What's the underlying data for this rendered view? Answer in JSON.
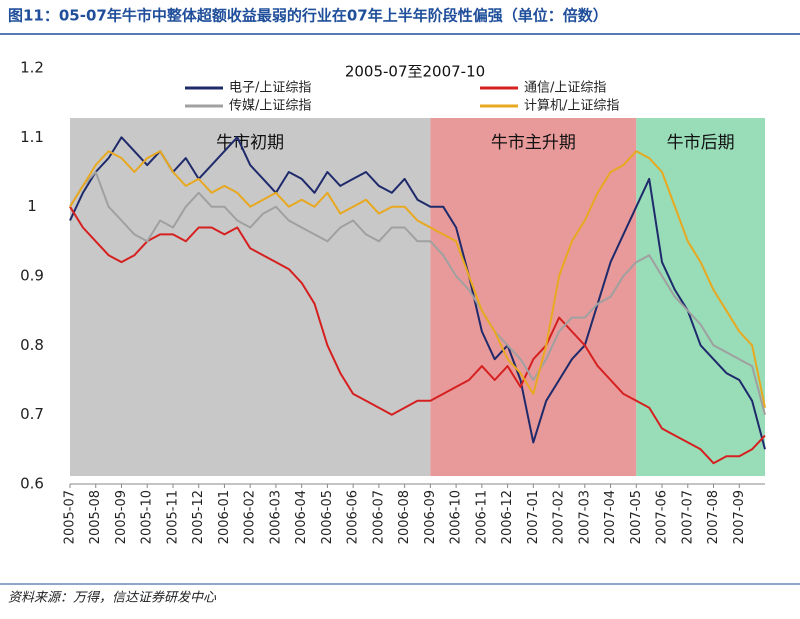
{
  "chart_data": {
    "type": "line",
    "figure_title": "图11：05-07年牛市中整体超额收益最弱的行业在07年上半年阶段性偏强（单位：倍数）",
    "title": "2005-07至2007-10",
    "source": "资料来源：万得，信达证券研发中心",
    "categories": [
      "2005-07",
      null,
      "2005-08",
      null,
      "2005-09",
      null,
      "2005-10",
      null,
      "2005-11",
      null,
      "2005-12",
      null,
      "2006-01",
      null,
      "2006-02",
      null,
      "2006-03",
      null,
      "2006-04",
      null,
      "2006-05",
      null,
      "2006-06",
      null,
      "2006-07",
      null,
      "2006-08",
      null,
      "2006-09",
      null,
      "2006-10",
      null,
      "2006-11",
      null,
      "2006-12",
      null,
      "2007-01",
      null,
      "2007-02",
      null,
      "2007-03",
      null,
      "2007-04",
      null,
      "2007-05",
      null,
      "2007-06",
      null,
      "2007-07",
      null,
      "2007-08",
      null,
      "2007-09",
      null,
      null
    ],
    "series": [
      {
        "name": "电子/上证综指",
        "color": "#1f2a6b",
        "values": [
          0.98,
          1.02,
          1.05,
          1.07,
          1.1,
          1.08,
          1.06,
          1.08,
          1.05,
          1.07,
          1.04,
          1.06,
          1.08,
          1.1,
          1.06,
          1.04,
          1.02,
          1.05,
          1.04,
          1.02,
          1.05,
          1.03,
          1.04,
          1.05,
          1.03,
          1.02,
          1.04,
          1.01,
          1.0,
          1.0,
          0.97,
          0.9,
          0.82,
          0.78,
          0.8,
          0.75,
          0.66,
          0.72,
          0.75,
          0.78,
          0.8,
          0.86,
          0.92,
          0.96,
          1.0,
          1.04,
          0.92,
          0.88,
          0.85,
          0.8,
          0.78,
          0.76,
          0.75,
          0.72,
          0.65
        ]
      },
      {
        "name": "通信/上证综指",
        "color": "#d62020",
        "values": [
          1.0,
          0.97,
          0.95,
          0.93,
          0.92,
          0.93,
          0.95,
          0.96,
          0.96,
          0.95,
          0.97,
          0.97,
          0.96,
          0.97,
          0.94,
          0.93,
          0.92,
          0.91,
          0.89,
          0.86,
          0.8,
          0.76,
          0.73,
          0.72,
          0.71,
          0.7,
          0.71,
          0.72,
          0.72,
          0.73,
          0.74,
          0.75,
          0.77,
          0.75,
          0.77,
          0.74,
          0.78,
          0.8,
          0.84,
          0.82,
          0.8,
          0.77,
          0.75,
          0.73,
          0.72,
          0.71,
          0.68,
          0.67,
          0.66,
          0.65,
          0.63,
          0.64,
          0.64,
          0.65,
          0.67
        ]
      },
      {
        "name": "传媒/上证综指",
        "color": "#a0a0a0",
        "values": [
          1.0,
          1.03,
          1.05,
          1.0,
          0.98,
          0.96,
          0.95,
          0.98,
          0.97,
          1.0,
          1.02,
          1.0,
          1.0,
          0.98,
          0.97,
          0.99,
          1.0,
          0.98,
          0.97,
          0.96,
          0.95,
          0.97,
          0.98,
          0.96,
          0.95,
          0.97,
          0.97,
          0.95,
          0.95,
          0.93,
          0.9,
          0.88,
          0.85,
          0.82,
          0.8,
          0.78,
          0.75,
          0.78,
          0.82,
          0.84,
          0.84,
          0.86,
          0.87,
          0.9,
          0.92,
          0.93,
          0.9,
          0.87,
          0.85,
          0.83,
          0.8,
          0.79,
          0.78,
          0.77,
          0.7
        ]
      },
      {
        "name": "计算机/上证综指",
        "color": "#e8a820",
        "values": [
          1.0,
          1.03,
          1.06,
          1.08,
          1.07,
          1.05,
          1.07,
          1.08,
          1.05,
          1.03,
          1.04,
          1.02,
          1.03,
          1.02,
          1.0,
          1.01,
          1.02,
          1.0,
          1.01,
          1.0,
          1.02,
          0.99,
          1.0,
          1.01,
          0.99,
          1.0,
          1.0,
          0.98,
          0.97,
          0.96,
          0.95,
          0.9,
          0.85,
          0.82,
          0.78,
          0.76,
          0.73,
          0.8,
          0.9,
          0.95,
          0.98,
          1.02,
          1.05,
          1.06,
          1.08,
          1.07,
          1.05,
          1.0,
          0.95,
          0.92,
          0.88,
          0.85,
          0.82,
          0.8,
          0.71
        ]
      }
    ],
    "regions": [
      {
        "label": "牛市初期",
        "from": "2005-07",
        "to": "2006-09",
        "color": "#c8c8c8"
      },
      {
        "label": "牛市主升期",
        "from": "2006-09",
        "to": "2007-05",
        "color": "#e89a9a"
      },
      {
        "label": "牛市后期",
        "from": "2007-05",
        "to": "2007-10",
        "color": "#98dcb8"
      }
    ],
    "ylim": [
      0.6,
      1.2
    ],
    "yticks": [
      0.6,
      0.7,
      0.8,
      0.9,
      1,
      1.1,
      1.2
    ],
    "grid": false
  }
}
